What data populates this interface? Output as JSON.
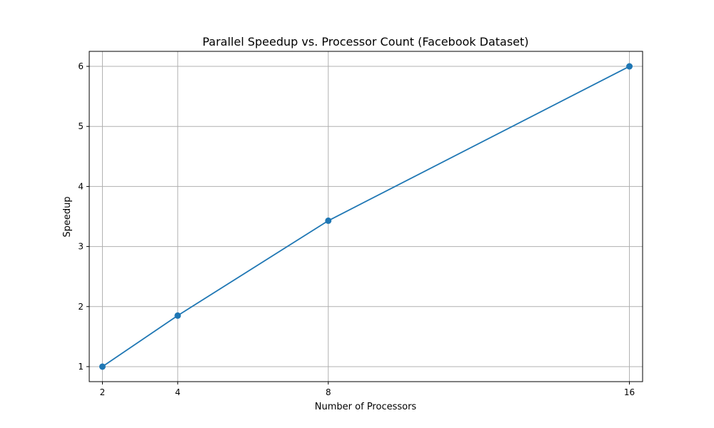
{
  "chart_data": {
    "type": "line",
    "title": "Parallel Speedup vs. Processor Count (Facebook Dataset)",
    "xlabel": "Number of Processors",
    "ylabel": "Speedup",
    "x": [
      2,
      4,
      8,
      16
    ],
    "series": [
      {
        "values": [
          1.0,
          1.85,
          3.43,
          6.0
        ],
        "color": "#1f77b4",
        "marker": "circle"
      }
    ],
    "xticks": [
      2,
      4,
      8,
      16
    ],
    "yticks": [
      1,
      2,
      3,
      4,
      5,
      6
    ],
    "xlim": [
      1.65,
      16.35
    ],
    "ylim": [
      0.75,
      6.25
    ],
    "grid": true,
    "grid_color": "#b0b0b0"
  }
}
